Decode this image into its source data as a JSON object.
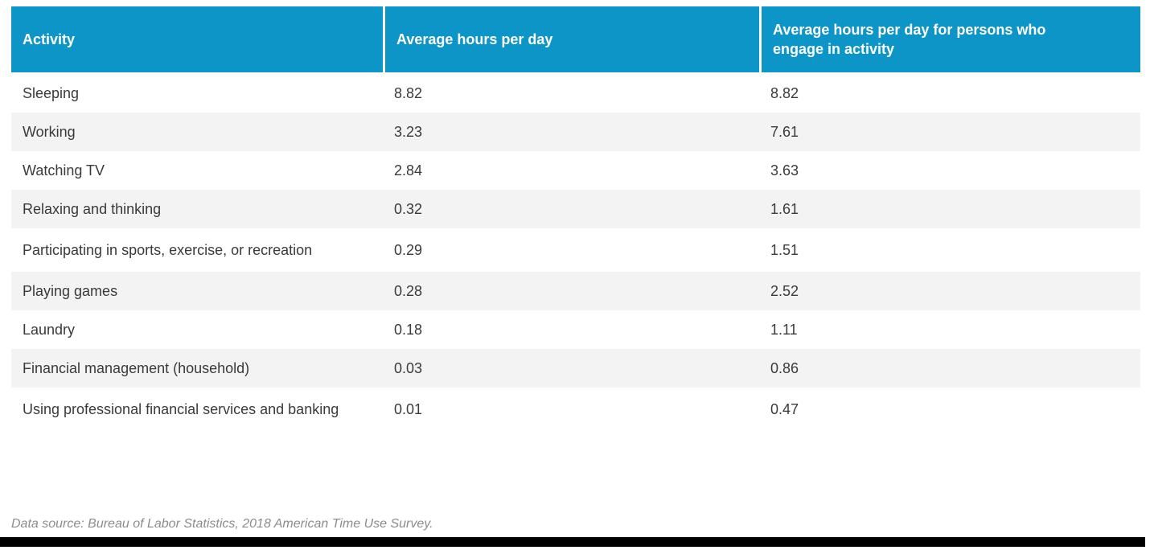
{
  "chart_data": {
    "type": "table",
    "columns": [
      "Activity",
      "Average hours per day",
      "Average hours per day for persons who engage in activity"
    ],
    "rows": [
      [
        "Sleeping",
        "8.82",
        "8.82"
      ],
      [
        "Working",
        "3.23",
        "7.61"
      ],
      [
        "Watching TV",
        "2.84",
        "3.63"
      ],
      [
        "Relaxing and thinking",
        "0.32",
        "1.61"
      ],
      [
        "Participating in sports, exercise, or recreation",
        "0.29",
        "1.51"
      ],
      [
        "Playing games",
        "0.28",
        "2.52"
      ],
      [
        "Laundry",
        "0.18",
        "1.11"
      ],
      [
        "Financial management (household)",
        "0.03",
        "0.86"
      ],
      [
        "Using professional financial services and banking",
        "0.01",
        "0.47"
      ]
    ],
    "source_note": "Data source: Bureau of Labor Statistics, 2018 American Time Use Survey."
  },
  "colors": {
    "header_bg": "#0d95c7",
    "row_alt_bg": "#f3f3f3",
    "body_text": "#3a3a3a",
    "header_text": "#ffffff",
    "source_text": "#8c8c8c",
    "bottom_bar": "#000000"
  }
}
